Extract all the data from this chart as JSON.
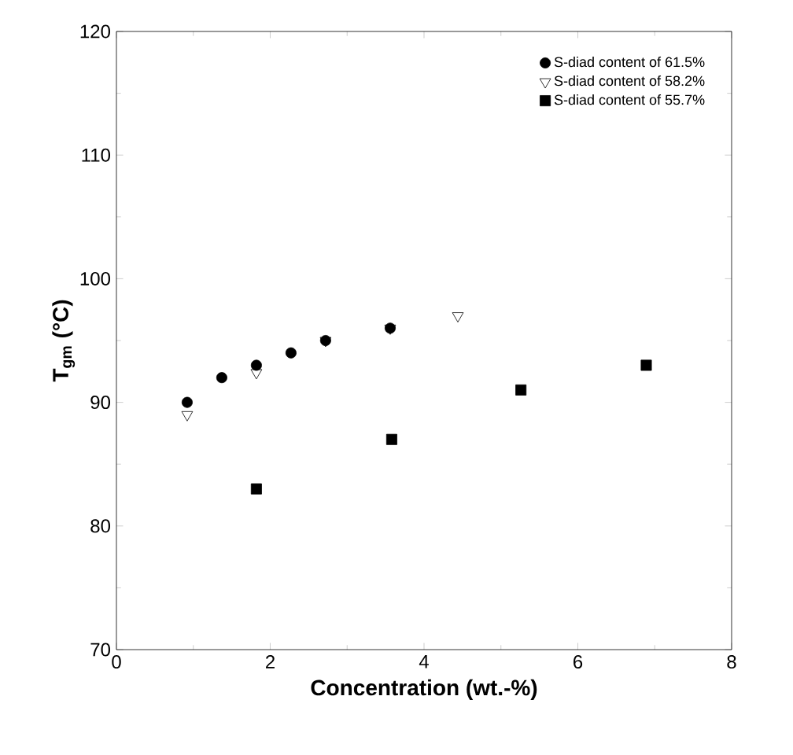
{
  "chart_data": {
    "type": "scatter",
    "xlabel": "Concentration (wt.-%)",
    "ylabel": "T$_{gm}$ (°C)",
    "xlim": [
      0,
      8
    ],
    "xticks": [
      0,
      2,
      4,
      6,
      8
    ],
    "ylim": [
      70,
      120
    ],
    "yticks": [
      70,
      80,
      90,
      100,
      110,
      120
    ],
    "legend": "top right",
    "grid": false,
    "series": [
      {
        "name": "S-diad content of 61.5%",
        "color": "#000000",
        "marker": "circle",
        "x": [
          0.92,
          1.37,
          1.82,
          2.27,
          2.72,
          3.56
        ],
        "values": [
          90,
          92,
          93,
          94,
          95,
          96
        ]
      },
      {
        "name": "S-diad content of 58.2%",
        "color": "#000000",
        "marker": "triangle",
        "x": [
          0.92,
          1.82,
          2.72,
          3.56,
          4.44
        ],
        "values": [
          89,
          92.4,
          95,
          96,
          97
        ]
      },
      {
        "name": "S-diad content of 55.7%",
        "color": "#000000",
        "marker": "square",
        "x": [
          1.82,
          3.58,
          5.26,
          6.89
        ],
        "values": [
          83,
          87,
          91,
          93
        ]
      }
    ]
  }
}
